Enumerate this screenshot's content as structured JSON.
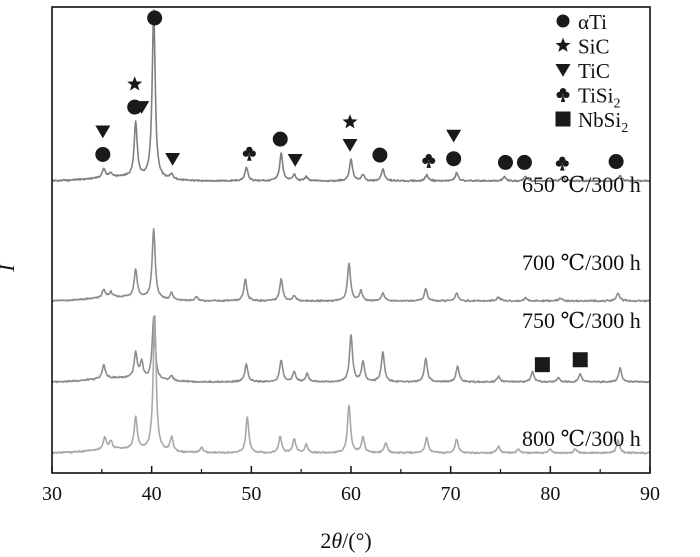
{
  "chart_data": {
    "type": "line",
    "xlabel_prefix": "2",
    "xlabel_var": "θ",
    "xlabel_unit": "/(°)",
    "ylabel": "I",
    "xlim": [
      30,
      90
    ],
    "x_ticks": [
      "30",
      "40",
      "50",
      "60",
      "70",
      "80",
      "90"
    ],
    "grid": false,
    "legend_position": "top-right",
    "legend": [
      {
        "marker": "circle",
        "label": "αTi",
        "sub": ""
      },
      {
        "marker": "star",
        "label": "SiC",
        "sub": ""
      },
      {
        "marker": "triangle-down",
        "label": "TiC",
        "sub": ""
      },
      {
        "marker": "club",
        "label": "TiSi",
        "sub": "2"
      },
      {
        "marker": "square",
        "label": "NbSi",
        "sub": "2"
      }
    ],
    "series": [
      {
        "name": "650 ℃/300 h",
        "color": "#7f7f7f",
        "peaks": [
          [
            35.2,
            9
          ],
          [
            35.9,
            4
          ],
          [
            38.4,
            55
          ],
          [
            40.2,
            168
          ],
          [
            42.0,
            5
          ],
          [
            49.5,
            14
          ],
          [
            53.0,
            28
          ],
          [
            54.3,
            6
          ],
          [
            55.5,
            4
          ],
          [
            60.0,
            22
          ],
          [
            61.2,
            6
          ],
          [
            63.2,
            12
          ],
          [
            67.6,
            6
          ],
          [
            70.6,
            8
          ],
          [
            75.4,
            4
          ],
          [
            77.5,
            5
          ],
          [
            81.2,
            4
          ],
          [
            87.0,
            6
          ]
        ]
      },
      {
        "name": "700 ℃/300 h",
        "color": "#8c8c8c",
        "peaks": [
          [
            35.2,
            8
          ],
          [
            35.9,
            5
          ],
          [
            38.4,
            28
          ],
          [
            40.2,
            70
          ],
          [
            42.0,
            7
          ],
          [
            44.5,
            4
          ],
          [
            49.4,
            22
          ],
          [
            53.0,
            22
          ],
          [
            54.3,
            5
          ],
          [
            59.8,
            38
          ],
          [
            61.0,
            10
          ],
          [
            63.2,
            8
          ],
          [
            67.5,
            12
          ],
          [
            70.6,
            8
          ],
          [
            74.8,
            4
          ],
          [
            77.5,
            3
          ],
          [
            81.0,
            3
          ],
          [
            86.8,
            8
          ]
        ]
      },
      {
        "name": "750 ℃/300 h",
        "color": "#8c8c8c",
        "peaks": [
          [
            35.2,
            14
          ],
          [
            38.4,
            25
          ],
          [
            39.0,
            16
          ],
          [
            40.2,
            62
          ],
          [
            42.0,
            5
          ],
          [
            49.5,
            18
          ],
          [
            53.0,
            22
          ],
          [
            54.3,
            10
          ],
          [
            55.6,
            8
          ],
          [
            60.0,
            47
          ],
          [
            61.2,
            20
          ],
          [
            63.2,
            30
          ],
          [
            67.5,
            24
          ],
          [
            70.7,
            16
          ],
          [
            74.8,
            6
          ],
          [
            78.2,
            10
          ],
          [
            80.8,
            4
          ],
          [
            83.0,
            8
          ],
          [
            87.0,
            14
          ]
        ]
      },
      {
        "name": "800 ℃/300 h",
        "color": "#a8a8a8",
        "peaks": [
          [
            35.3,
            12
          ],
          [
            35.9,
            8
          ],
          [
            38.4,
            32
          ],
          [
            40.3,
            136
          ],
          [
            42.0,
            14
          ],
          [
            45.0,
            5
          ],
          [
            49.6,
            36
          ],
          [
            52.9,
            16
          ],
          [
            54.3,
            14
          ],
          [
            55.5,
            8
          ],
          [
            59.8,
            48
          ],
          [
            61.2,
            16
          ],
          [
            63.5,
            10
          ],
          [
            67.6,
            16
          ],
          [
            70.6,
            14
          ],
          [
            74.8,
            7
          ],
          [
            76.8,
            4
          ],
          [
            80.0,
            4
          ],
          [
            82.5,
            4
          ],
          [
            86.8,
            13
          ]
        ]
      }
    ],
    "annotations": [
      {
        "marker": "circle",
        "x": 35.1,
        "on": 0
      },
      {
        "marker": "triangle-down",
        "x": 35.1,
        "on": 0
      },
      {
        "marker": "circle",
        "x": 38.3,
        "on": 0
      },
      {
        "marker": "star",
        "x": 38.3,
        "on": 0
      },
      {
        "marker": "triangle-down",
        "x": 39.0,
        "on": 0
      },
      {
        "marker": "circle",
        "x": 40.3,
        "on": 0
      },
      {
        "marker": "triangle-down",
        "x": 42.1,
        "on": 0
      },
      {
        "marker": "club",
        "x": 49.8,
        "on": 0
      },
      {
        "marker": "circle",
        "x": 52.9,
        "on": 0
      },
      {
        "marker": "triangle-down",
        "x": 54.4,
        "on": 0
      },
      {
        "marker": "triangle-down",
        "x": 59.9,
        "on": 0
      },
      {
        "marker": "star",
        "x": 59.9,
        "on": 0
      },
      {
        "marker": "circle",
        "x": 62.9,
        "on": 0
      },
      {
        "marker": "club",
        "x": 67.8,
        "on": 0
      },
      {
        "marker": "circle",
        "x": 70.3,
        "on": 0
      },
      {
        "marker": "triangle-down",
        "x": 70.3,
        "on": 0
      },
      {
        "marker": "circle",
        "x": 75.5,
        "on": 0
      },
      {
        "marker": "circle",
        "x": 77.4,
        "on": 0
      },
      {
        "marker": "club",
        "x": 81.2,
        "on": 0
      },
      {
        "marker": "circle",
        "x": 86.6,
        "on": 0
      },
      {
        "marker": "square",
        "x": 79.2,
        "on": 2
      },
      {
        "marker": "square",
        "x": 83.0,
        "on": 2
      }
    ]
  }
}
